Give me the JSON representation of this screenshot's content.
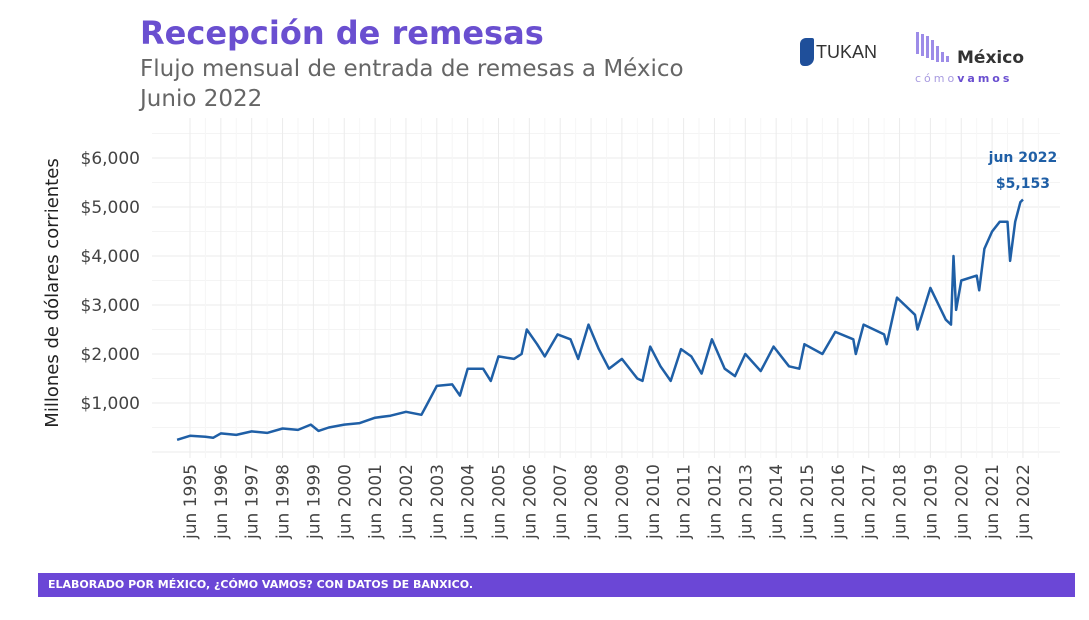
{
  "header": {
    "title": "Recepción de remesas",
    "subtitle": "Flujo mensual de entrada de remesas a México",
    "date": "Junio 2022"
  },
  "logos": {
    "tukan": "TUKAN",
    "mcv_main": "México",
    "mcv_a": "cómo",
    "mcv_b": "vamos"
  },
  "footer": "ELABORADO POR MÉXICO, ¿CÓMO VAMOS? CON DATOS DE BANXICO.",
  "colors": {
    "title": "#6a4fd0",
    "line": "#1f5fa6",
    "footer": "#6b47d6"
  },
  "chart_data": {
    "type": "line",
    "ylabel": "Millones de dólares corrientes",
    "ylim": [
      0,
      6500
    ],
    "yticks": [
      1000,
      2000,
      3000,
      4000,
      5000,
      6000
    ],
    "ytick_labels": [
      "$1,000",
      "$2,000",
      "$3,000",
      "$4,000",
      "$5,000",
      "$6,000"
    ],
    "xtick_labels": [
      "jun 1995",
      "jun 1996",
      "jun 1997",
      "jun 1998",
      "jun 1999",
      "jun 2000",
      "jun 2001",
      "jun 2002",
      "jun 2003",
      "jun 2004",
      "jun 2005",
      "jun 2006",
      "jun 2007",
      "jun 2008",
      "jun 2009",
      "jun 2010",
      "jun 2011",
      "jun 2012",
      "jun 2013",
      "jun 2014",
      "jun 2015",
      "jun 2016",
      "jun 2017",
      "jun 2018",
      "jun 2019",
      "jun 2020",
      "jun 2021",
      "jun 2022"
    ],
    "grid": true,
    "annotation": {
      "label": "jun 2022",
      "value_label": "$5,153",
      "x": "2022-06",
      "y": 5153
    },
    "series": [
      {
        "x": [
          "1995-01",
          "1995-06",
          "1995-12",
          "1996-03",
          "1996-06",
          "1996-12",
          "1997-06",
          "1997-12",
          "1998-06",
          "1998-12",
          "1999-05",
          "1999-08",
          "1999-12",
          "2000-06",
          "2000-12",
          "2001-06",
          "2001-12",
          "2002-06",
          "2002-12",
          "2003-02",
          "2003-06",
          "2003-12",
          "2004-03",
          "2004-06",
          "2004-12",
          "2005-03",
          "2005-06",
          "2005-12",
          "2006-03",
          "2006-05",
          "2006-09",
          "2006-12",
          "2007-05",
          "2007-10",
          "2008-01",
          "2008-05",
          "2008-09",
          "2009-01",
          "2009-06",
          "2009-12",
          "2010-02",
          "2010-05",
          "2010-09",
          "2011-01",
          "2011-05",
          "2011-09",
          "2012-01",
          "2012-05",
          "2012-10",
          "2013-02",
          "2013-06",
          "2013-12",
          "2014-05",
          "2014-11",
          "2015-03",
          "2015-05",
          "2015-12",
          "2016-05",
          "2016-12",
          "2017-01",
          "2017-04",
          "2017-12",
          "2018-01",
          "2018-05",
          "2018-12",
          "2019-01",
          "2019-06",
          "2019-12",
          "2020-02",
          "2020-03",
          "2020-04",
          "2020-06",
          "2020-12",
          "2021-01",
          "2021-03",
          "2021-06",
          "2021-09",
          "2021-12",
          "2022-01",
          "2022-03",
          "2022-05",
          "2022-06"
        ],
        "values": [
          250,
          330,
          310,
          290,
          380,
          350,
          420,
          390,
          480,
          450,
          560,
          430,
          500,
          560,
          590,
          700,
          740,
          820,
          760,
          950,
          1350,
          1380,
          1150,
          1700,
          1700,
          1450,
          1950,
          1900,
          2000,
          2500,
          2200,
          1950,
          2400,
          2300,
          1900,
          2600,
          2100,
          1700,
          1900,
          1500,
          1450,
          2150,
          1750,
          1450,
          2100,
          1950,
          1600,
          2300,
          1700,
          1550,
          2000,
          1650,
          2150,
          1750,
          1700,
          2200,
          2000,
          2450,
          2300,
          2000,
          2600,
          2400,
          2200,
          3150,
          2800,
          2500,
          3350,
          2700,
          2600,
          4000,
          2900,
          3500,
          3600,
          3300,
          4150,
          4500,
          4700,
          4700,
          3900,
          4700,
          5100,
          5153
        ]
      }
    ]
  }
}
